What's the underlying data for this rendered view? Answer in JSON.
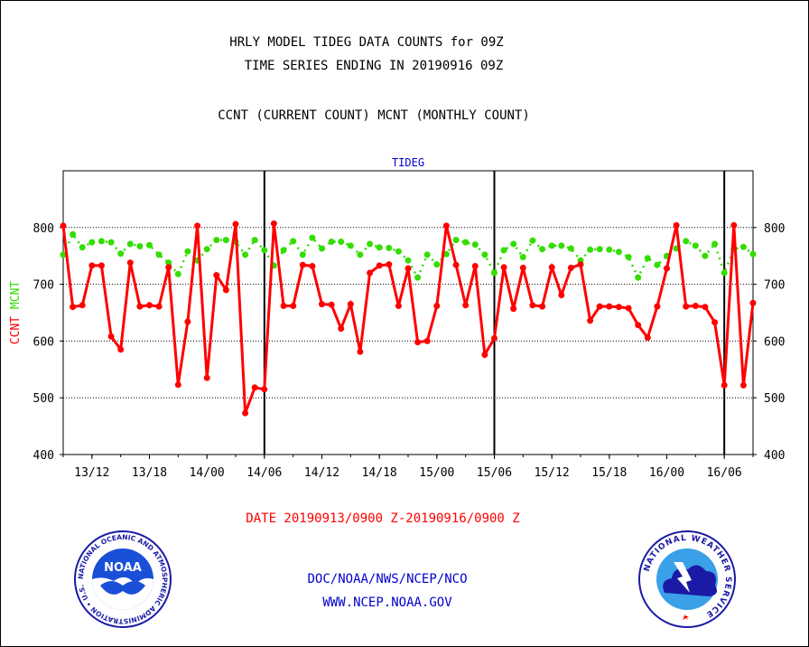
{
  "titles": {
    "line1": "HRLY MODEL TIDEG DATA COUNTS for 09Z",
    "line2": "TIME SERIES ENDING IN 20190916 09Z",
    "line3": "CCNT (CURRENT COUNT) MCNT (MONTHLY COUNT)"
  },
  "footer": {
    "date_range": "DATE 20190913/0900 Z-20190916/0900 Z",
    "agency": "DOC/NOAA/NWS/NCEP/NCO",
    "url": "WWW.NCEP.NOAA.GOV"
  },
  "logos": {
    "noaa_text": "NOAA",
    "noaa_ring": "NATIONAL OCEANIC AND ATMOSPHERIC ADMINISTRATION • U.S. DEPARTMENT OF COMMERCE •",
    "nws_ring": "NATIONAL WEATHER SERVICE"
  },
  "colors": {
    "ccnt": "#ff0000",
    "mcnt": "#33dd00",
    "title_blue": "#0000cc",
    "grid": "#000000"
  },
  "chart_data": {
    "type": "line",
    "title": "TIDEG",
    "ylabel_left": [
      "CCNT",
      "MCNT"
    ],
    "ylim": [
      400,
      900
    ],
    "yticks": [
      400,
      500,
      600,
      700,
      800
    ],
    "grid": true,
    "x_start": "2019-09-13 09Z",
    "x_end": "2019-09-16 09Z",
    "x_ticks": [
      "13/12",
      "13/18",
      "14/00",
      "14/06",
      "14/12",
      "14/18",
      "15/00",
      "15/06",
      "15/12",
      "15/18",
      "16/00",
      "16/06"
    ],
    "day_boundaries": [
      "14/06",
      "15/06",
      "16/06"
    ],
    "series": [
      {
        "name": "CCNT",
        "values": [
          803,
          660,
          663,
          733,
          733,
          608,
          585,
          738,
          661,
          663,
          661,
          730,
          523,
          634,
          803,
          535,
          716,
          690,
          806,
          473,
          518,
          515,
          807,
          662,
          662,
          734,
          732,
          665,
          664,
          622,
          665,
          581,
          720,
          733,
          735,
          662,
          728,
          598,
          600,
          662,
          803,
          734,
          663,
          732,
          576,
          605,
          730,
          657,
          729,
          663,
          661,
          730,
          681,
          729,
          735,
          636,
          661,
          661,
          660,
          658,
          628,
          606,
          661,
          728,
          804,
          661,
          662,
          660,
          633,
          522,
          804,
          522,
          667
        ],
        "color": "#ff0000"
      },
      {
        "name": "MCNT",
        "values": [
          752,
          788,
          765,
          774,
          776,
          774,
          754,
          771,
          767,
          769,
          752,
          738,
          718,
          758,
          742,
          762,
          778,
          778,
          775,
          752,
          778,
          760,
          733,
          760,
          776,
          752,
          782,
          763,
          775,
          775,
          768,
          752,
          771,
          765,
          764,
          758,
          742,
          712,
          752,
          735,
          753,
          778,
          774,
          770,
          752,
          720,
          760,
          771,
          748,
          777,
          762,
          768,
          768,
          763,
          742,
          761,
          762,
          761,
          757,
          748,
          712,
          746,
          734,
          750,
          763,
          776,
          768,
          750,
          771,
          720,
          762,
          766,
          753
        ],
        "color": "#33dd00"
      }
    ]
  }
}
